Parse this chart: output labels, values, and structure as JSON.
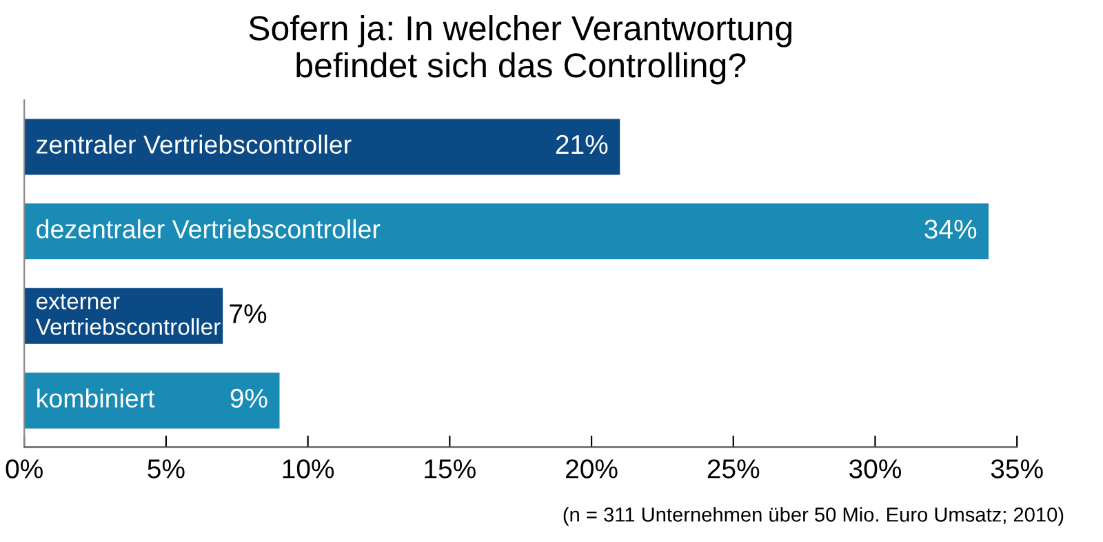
{
  "chart_data": {
    "type": "bar",
    "orientation": "horizontal",
    "title": "Sofern ja: In welcher Verantwortung\nbefindet sich das Controlling?",
    "categories": [
      "zentraler Vertriebscontroller",
      "dezentraler Vertriebscontroller",
      "externer\nVertriebscontroller",
      "kombiniert"
    ],
    "values": [
      21,
      34,
      7,
      9
    ],
    "colors": [
      "#0b4a85",
      "#1a8bb5",
      "#0b4a85",
      "#1a8bb5"
    ],
    "value_labels": [
      "21%",
      "34%",
      "7%",
      "9%"
    ],
    "xlim": [
      0,
      35
    ],
    "xticks": [
      {
        "value": 0,
        "label": "0%"
      },
      {
        "value": 5,
        "label": "5%"
      },
      {
        "value": 10,
        "label": "10%"
      },
      {
        "value": 15,
        "label": "15%"
      },
      {
        "value": 20,
        "label": "20%"
      },
      {
        "value": 25,
        "label": "25%"
      },
      {
        "value": 30,
        "label": "30%"
      },
      {
        "value": 35,
        "label": "35%"
      }
    ],
    "grid": false,
    "annotations": [
      "(n = 311 Unternehmen über 50 Mio. Euro Umsatz; 2010)"
    ]
  }
}
